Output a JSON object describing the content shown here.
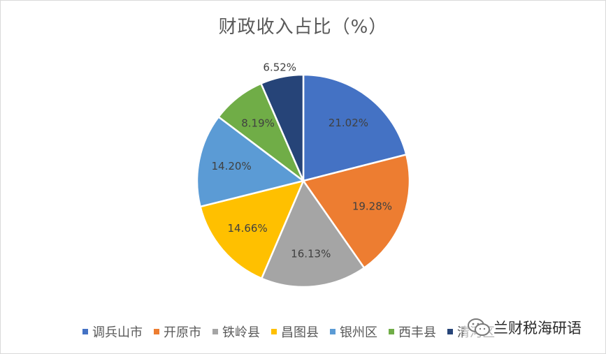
{
  "chart_data": {
    "type": "pie",
    "title": "财政收入占比（%）",
    "start_angle_deg": 0,
    "direction": "clockwise",
    "legend_position": "bottom",
    "categories": [
      "调兵山市",
      "开原市",
      "铁岭县",
      "昌图县",
      "银州区",
      "西丰县",
      "清河区"
    ],
    "values": [
      21.02,
      19.28,
      16.13,
      14.66,
      14.2,
      8.19,
      6.52
    ],
    "labels": [
      "21.02%",
      "19.28%",
      "16.13%",
      "14.66%",
      "14.20%",
      "8.19%",
      "6.52%"
    ],
    "colors": [
      "#4472c4",
      "#ed7d31",
      "#a5a5a5",
      "#ffc000",
      "#5b9bd5",
      "#70ad47",
      "#264478"
    ]
  },
  "watermark": {
    "text": "兰财税海研语"
  }
}
